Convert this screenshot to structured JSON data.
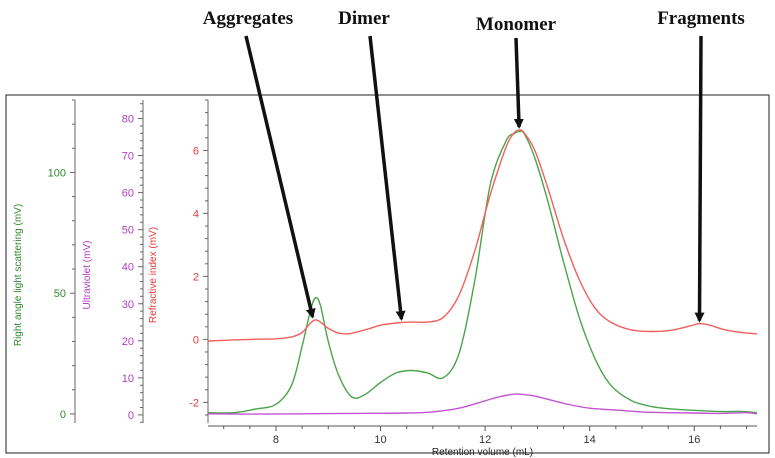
{
  "chart_data": {
    "type": "line",
    "xlabel": "Retention volume (mL)",
    "xlim": [
      6.7,
      17.2
    ],
    "xticks": [
      "8",
      "10",
      "12",
      "14",
      "16"
    ],
    "axes": [
      {
        "id": "rals",
        "label": "Right angle light scattering (mV)",
        "color": "#2e8b2e",
        "ticks": [
          "0",
          "50",
          "100"
        ],
        "ylim": [
          -5,
          130
        ]
      },
      {
        "id": "uv",
        "label": "Ultraviolet (mV)",
        "color": "#b23cc4",
        "ticks": [
          "0",
          "10",
          "20",
          "30",
          "40",
          "50",
          "60",
          "70",
          "80"
        ],
        "ylim": [
          -3,
          85
        ]
      },
      {
        "id": "ri",
        "label": "Refractive index (mV)",
        "color": "#e83a3a",
        "ticks": [
          "-2",
          "0",
          "2",
          "4",
          "6"
        ],
        "ylim": [
          -2.75,
          7.6
        ]
      }
    ],
    "series": [
      {
        "axis": "rals",
        "color": "#4aa54a",
        "x": [
          6.7,
          7.2,
          7.6,
          8.0,
          8.3,
          8.5,
          8.65,
          8.75,
          8.85,
          9.0,
          9.2,
          9.45,
          9.7,
          10.0,
          10.3,
          10.6,
          10.9,
          11.2,
          11.5,
          11.8,
          12.1,
          12.4,
          12.55,
          12.65,
          12.75,
          12.95,
          13.2,
          13.5,
          13.8,
          14.1,
          14.4,
          14.8,
          15.2,
          15.6,
          16.0,
          16.5,
          16.9,
          17.2
        ],
        "y": [
          0.5,
          0.5,
          2.0,
          4.0,
          12.0,
          28.0,
          42.0,
          48.0,
          45.0,
          30.0,
          16.0,
          7.0,
          8.0,
          13.0,
          17.0,
          18.0,
          17.0,
          15.0,
          25.0,
          55.0,
          95.0,
          113.0,
          116.0,
          117.0,
          116.0,
          106.0,
          88.0,
          63.0,
          40.0,
          23.0,
          12.0,
          5.5,
          3.0,
          2.0,
          1.5,
          1.0,
          1.0,
          0.5
        ]
      },
      {
        "axis": "uv",
        "color": "#c254d2",
        "x": [
          6.7,
          7.5,
          8.5,
          9.5,
          10.5,
          11.0,
          11.5,
          12.0,
          12.3,
          12.6,
          12.9,
          13.2,
          13.6,
          14.0,
          14.5,
          15.0,
          15.5,
          16.0,
          16.5,
          17.0,
          17.2
        ],
        "y": [
          0.3,
          0.2,
          0.3,
          0.4,
          0.5,
          0.8,
          1.8,
          3.8,
          5.0,
          5.6,
          5.2,
          4.2,
          2.8,
          1.8,
          1.3,
          0.8,
          0.6,
          0.5,
          0.4,
          0.6,
          0.3
        ]
      },
      {
        "axis": "ri",
        "color": "#f0605c",
        "x": [
          6.7,
          7.5,
          8.0,
          8.3,
          8.5,
          8.65,
          8.75,
          8.85,
          9.0,
          9.2,
          9.4,
          9.7,
          10.0,
          10.3,
          10.6,
          10.9,
          11.2,
          11.5,
          11.8,
          12.1,
          12.4,
          12.55,
          12.65,
          12.75,
          12.95,
          13.2,
          13.5,
          13.8,
          14.1,
          14.4,
          14.8,
          15.2,
          15.6,
          15.9,
          16.1,
          16.3,
          16.6,
          17.0,
          17.2
        ],
        "y": [
          -0.05,
          0.0,
          0.02,
          0.08,
          0.22,
          0.5,
          0.62,
          0.55,
          0.35,
          0.2,
          0.18,
          0.3,
          0.45,
          0.52,
          0.55,
          0.55,
          0.7,
          1.4,
          2.8,
          4.6,
          6.1,
          6.55,
          6.65,
          6.55,
          6.0,
          4.8,
          3.2,
          1.9,
          1.0,
          0.55,
          0.3,
          0.25,
          0.3,
          0.42,
          0.5,
          0.45,
          0.3,
          0.2,
          0.18
        ]
      }
    ],
    "annotations": [
      {
        "text": "Aggregates",
        "x": 8.7,
        "axis": "ri",
        "y": 0.62
      },
      {
        "text": "Dimer",
        "x": 10.4,
        "axis": "ri",
        "y": 0.55
      },
      {
        "text": "Monomer",
        "x": 12.65,
        "axis": "ri",
        "y": 6.65
      },
      {
        "text": "Fragments",
        "x": 16.1,
        "axis": "ri",
        "y": 0.5
      }
    ]
  }
}
